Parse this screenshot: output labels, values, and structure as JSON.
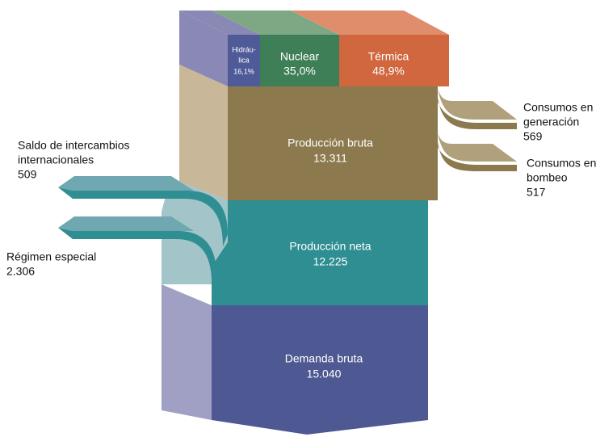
{
  "sources": [
    {
      "lines": [
        "Hidráu-",
        "lica"
      ],
      "value": "16,1%"
    },
    {
      "lines": [
        "Nuclear"
      ],
      "value": "35,0%"
    },
    {
      "lines": [
        "Térmica"
      ],
      "value": "48,9%"
    }
  ],
  "blocks": [
    {
      "label": "Producción bruta",
      "value": "13.311"
    },
    {
      "label": "Producción neta",
      "value": "12.225"
    },
    {
      "label": "Demanda bruta",
      "value": "15.040"
    }
  ],
  "outflows": [
    {
      "lines": [
        "Consumos en",
        "generación"
      ],
      "value": "569"
    },
    {
      "lines": [
        "Consumos en",
        "bombeo"
      ],
      "value": "517"
    }
  ],
  "inflows": [
    {
      "lines": [
        "Saldo de intercambios",
        "internacionales"
      ],
      "value": "509"
    },
    {
      "lines": [
        "Régimen especial"
      ],
      "value": "2.306"
    }
  ]
}
